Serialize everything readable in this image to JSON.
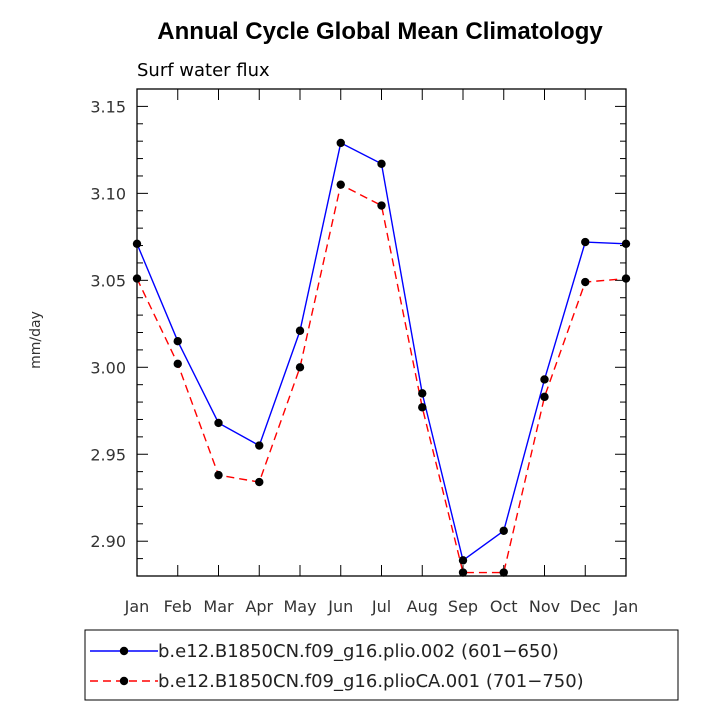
{
  "chart_data": {
    "type": "line",
    "title": "Annual Cycle Global Mean Climatology",
    "subtitle": "Surf water flux",
    "xlabel": "",
    "ylabel": "mm/day",
    "categories": [
      "Jan",
      "Feb",
      "Mar",
      "Apr",
      "May",
      "Jun",
      "Jul",
      "Aug",
      "Sep",
      "Oct",
      "Nov",
      "Dec",
      "Jan"
    ],
    "yticks": [
      "3.15",
      "3.10",
      "3.05",
      "3.00",
      "2.95",
      "2.90"
    ],
    "ylim": [
      2.88,
      3.16
    ],
    "series": [
      {
        "name": "b.e12.B1850CN.f09_g16.plio.002 (601−650)",
        "color": "#0000ff",
        "dash": "solid",
        "values": [
          3.071,
          3.015,
          2.968,
          2.955,
          3.021,
          3.129,
          3.117,
          2.985,
          2.889,
          2.906,
          2.993,
          3.072,
          3.071
        ]
      },
      {
        "name": "b.e12.B1850CN.f09_g16.plioCA.001 (701−750)",
        "color": "#ff0000",
        "dash": "dashed",
        "values": [
          3.051,
          3.002,
          2.938,
          2.934,
          3.0,
          3.105,
          3.093,
          2.977,
          2.882,
          2.882,
          2.983,
          3.049,
          3.051
        ]
      }
    ],
    "grid": false,
    "legend_position": "bottom"
  }
}
